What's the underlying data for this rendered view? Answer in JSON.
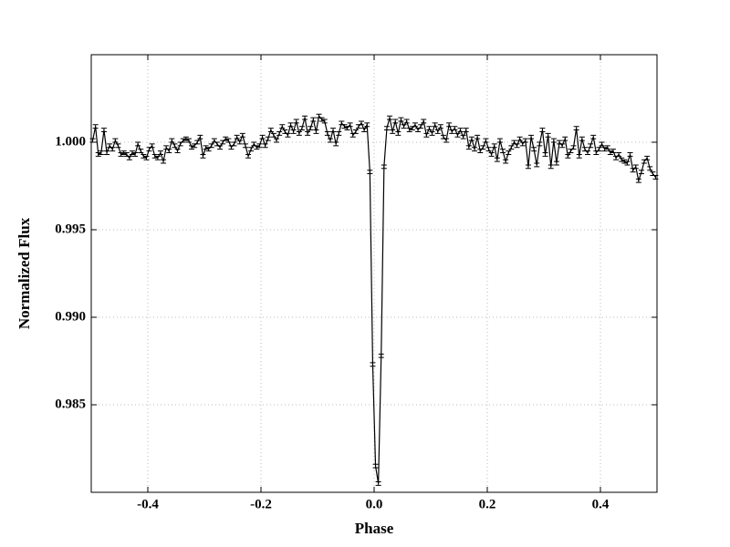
{
  "chart_data": {
    "type": "errorbar-line",
    "xlabel": "Phase",
    "ylabel": "Normalized Flux",
    "xlim": [
      -0.5,
      0.5
    ],
    "ylim": [
      0.98,
      1.005
    ],
    "xticks": [
      -0.4,
      -0.2,
      {
        "value": 0,
        "label": "0.0"
      },
      0.2,
      0.4
    ],
    "yticks": [
      {
        "value": 1.0,
        "label": "1.000"
      },
      0.995,
      {
        "value": 0.99,
        "label": "0.990"
      },
      0.985
    ],
    "grid": true,
    "x": [
      -0.4975,
      -0.4925,
      -0.4875,
      -0.4825,
      -0.4775,
      -0.4725,
      -0.4675,
      -0.4625,
      -0.4575,
      -0.4525,
      -0.4475,
      -0.4425,
      -0.4375,
      -0.4325,
      -0.4275,
      -0.4225,
      -0.4175,
      -0.4125,
      -0.4075,
      -0.4025,
      -0.3975,
      -0.3925,
      -0.3875,
      -0.3825,
      -0.3775,
      -0.3725,
      -0.3675,
      -0.3625,
      -0.3575,
      -0.3525,
      -0.3475,
      -0.3425,
      -0.3375,
      -0.3325,
      -0.3275,
      -0.3225,
      -0.3175,
      -0.3125,
      -0.3075,
      -0.3025,
      -0.2975,
      -0.2925,
      -0.2875,
      -0.2825,
      -0.2775,
      -0.2725,
      -0.2675,
      -0.2625,
      -0.2575,
      -0.2525,
      -0.2475,
      -0.2425,
      -0.2375,
      -0.2325,
      -0.2275,
      -0.2225,
      -0.2175,
      -0.2125,
      -0.2075,
      -0.2025,
      -0.1975,
      -0.1925,
      -0.1875,
      -0.1825,
      -0.1775,
      -0.1725,
      -0.1675,
      -0.1625,
      -0.1575,
      -0.1525,
      -0.1475,
      -0.1425,
      -0.1375,
      -0.1325,
      -0.1275,
      -0.1225,
      -0.1175,
      -0.1125,
      -0.1075,
      -0.1025,
      -0.0975,
      -0.0925,
      -0.0875,
      -0.0825,
      -0.0775,
      -0.0725,
      -0.0675,
      -0.0625,
      -0.0575,
      -0.0525,
      -0.0475,
      -0.0425,
      -0.0375,
      -0.0325,
      -0.0275,
      -0.0225,
      -0.0175,
      -0.0125,
      -0.0075,
      -0.0025,
      0.0025,
      0.0075,
      0.0125,
      0.0175,
      0.0225,
      0.0275,
      0.0325,
      0.0375,
      0.0425,
      0.0475,
      0.0525,
      0.0575,
      0.0625,
      0.0675,
      0.0725,
      0.0775,
      0.0825,
      0.0875,
      0.0925,
      0.0975,
      0.1025,
      0.1075,
      0.1125,
      0.1175,
      0.1225,
      0.1275,
      0.1325,
      0.1375,
      0.1425,
      0.1475,
      0.1525,
      0.1575,
      0.1625,
      0.1675,
      0.1725,
      0.1775,
      0.1825,
      0.1875,
      0.1925,
      0.1975,
      0.2025,
      0.2075,
      0.2125,
      0.2175,
      0.2225,
      0.2275,
      0.2325,
      0.2375,
      0.2425,
      0.2475,
      0.2525,
      0.2575,
      0.2625,
      0.2675,
      0.2725,
      0.2775,
      0.2825,
      0.2875,
      0.2925,
      0.2975,
      0.3025,
      0.3075,
      0.3125,
      0.3175,
      0.3225,
      0.3275,
      0.3325,
      0.3375,
      0.3425,
      0.3475,
      0.3525,
      0.3575,
      0.3625,
      0.3675,
      0.3725,
      0.3775,
      0.3825,
      0.3875,
      0.3925,
      0.3975,
      0.4025,
      0.4075,
      0.4125,
      0.4175,
      0.4225,
      0.4275,
      0.4325,
      0.4375,
      0.4425,
      0.4475,
      0.4525,
      0.4575,
      0.4625,
      0.4675,
      0.4725,
      0.4775,
      0.4825,
      0.4875,
      0.4925,
      0.4975
    ],
    "series": [
      {
        "color": "#000000",
        "error": 0.0001,
        "values": [
          1.0001,
          1.0009,
          0.9993,
          0.9994,
          1.0007,
          0.9994,
          0.9998,
          0.9996,
          1.0001,
          0.9998,
          0.9993,
          0.9994,
          0.9993,
          0.9991,
          0.9994,
          0.9993,
          0.9999,
          0.9995,
          0.9992,
          0.9991,
          0.9996,
          0.9998,
          0.9992,
          0.9991,
          0.9994,
          0.9989,
          0.9997,
          0.9995,
          1.0001,
          0.9998,
          0.9995,
          0.9999,
          1.0001,
          1.0002,
          1.0001,
          0.9997,
          0.9998,
          1.0,
          1.0003,
          0.9992,
          0.9997,
          0.9996,
          0.9998,
          1.0001,
          0.9999,
          0.9997,
          1.0,
          1.0002,
          1.0001,
          0.9997,
          0.9999,
          1.0003,
          1.0,
          1.0004,
          0.9998,
          0.9992,
          0.9996,
          0.9999,
          0.9997,
          0.9998,
          1.0003,
          0.9998,
          1.0002,
          1.0007,
          1.0004,
          1.0001,
          1.0005,
          1.0009,
          1.0006,
          1.0004,
          1.001,
          1.0006,
          1.0012,
          1.0005,
          1.0008,
          1.0014,
          1.0005,
          1.0008,
          1.0013,
          1.0006,
          1.0015,
          1.0013,
          1.0012,
          1.0005,
          1.0001,
          1.0007,
          0.9999,
          1.0005,
          1.0011,
          1.0009,
          1.0008,
          1.001,
          1.0004,
          1.0006,
          1.0009,
          1.0011,
          1.0007,
          1.001,
          0.9983,
          0.9873,
          0.9815,
          0.9805,
          0.9878,
          0.9986,
          1.0008,
          1.0014,
          1.0006,
          1.0012,
          1.0005,
          1.0013,
          1.0009,
          1.0012,
          1.0007,
          1.0008,
          1.001,
          1.0007,
          1.0009,
          1.0012,
          1.0004,
          1.0008,
          1.0005,
          1.001,
          1.0006,
          1.0009,
          1.0003,
          1.0001,
          1.001,
          1.0006,
          1.0008,
          1.0004,
          1.0007,
          1.0003,
          1.0007,
          0.9997,
          1.0002,
          0.9996,
          1.0003,
          0.9995,
          0.9997,
          1.0001,
          0.9996,
          0.9993,
          0.9998,
          0.999,
          1.0001,
          0.9995,
          0.9989,
          0.9994,
          0.9997,
          1.0,
          0.9998,
          1.0002,
          0.9999,
          1.0001,
          0.9986,
          1.0003,
          0.9996,
          0.9987,
          0.9999,
          1.0007,
          0.9993,
          1.0004,
          0.9986,
          1.0001,
          0.9988,
          1.0,
          0.9998,
          1.0002,
          0.9992,
          0.9995,
          0.9997,
          1.0008,
          0.9992,
          1.0002,
          0.9996,
          0.9994,
          0.9998,
          1.0003,
          0.9994,
          0.9996,
          0.9999,
          0.9996,
          0.9997,
          0.9994,
          0.9995,
          0.9991,
          0.9993,
          0.999,
          0.9989,
          0.9988,
          0.9993,
          0.9984,
          0.9986,
          0.9978,
          0.9983,
          0.9989,
          0.9991,
          0.9985,
          0.9982,
          0.998
        ]
      }
    ]
  }
}
